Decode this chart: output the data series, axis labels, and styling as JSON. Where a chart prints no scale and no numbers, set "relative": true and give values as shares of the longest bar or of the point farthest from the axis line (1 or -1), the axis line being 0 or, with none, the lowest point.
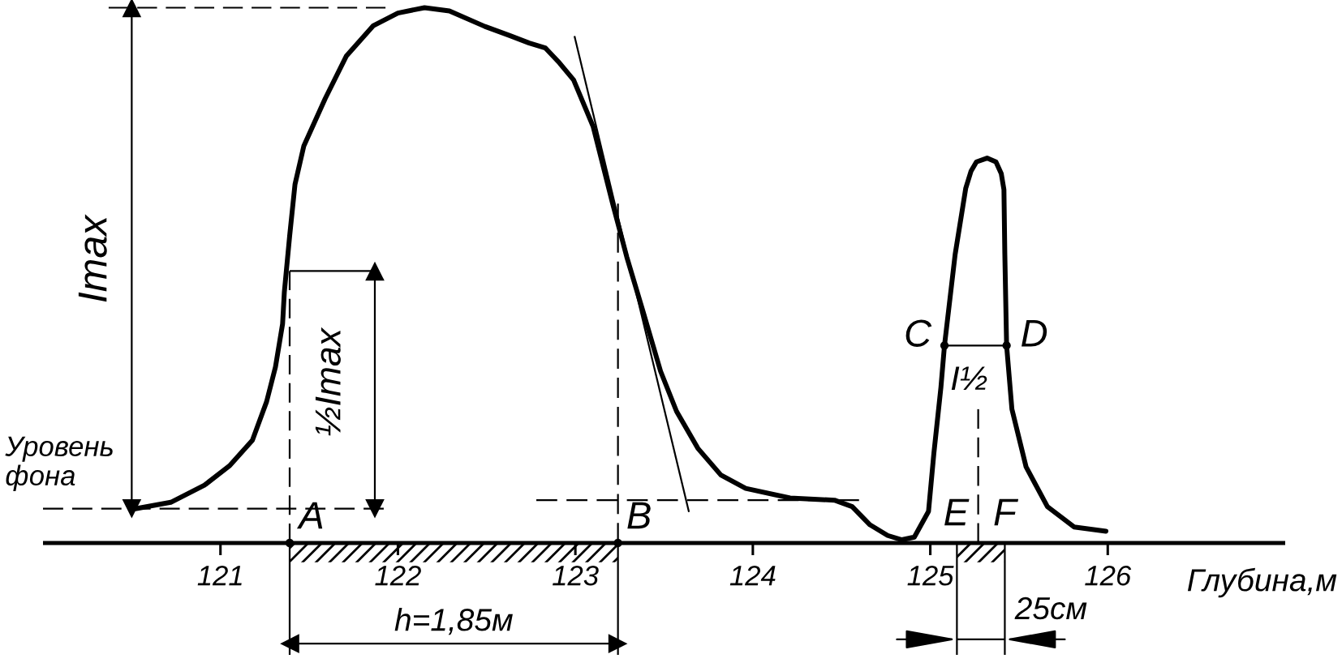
{
  "chart_data": {
    "type": "line",
    "relative": true,
    "xlabel": "Глубина,м",
    "xlim": [
      120,
      127
    ],
    "xticks": [
      121,
      122,
      123,
      124,
      125,
      126
    ],
    "tick_labels": "x",
    "series": [
      {
        "color": "#000000",
        "x": [
          120.52,
          120.72,
          120.91,
          121.05,
          121.18,
          121.26,
          121.31,
          121.35,
          121.36,
          121.39,
          121.42,
          121.47,
          121.59,
          121.71,
          121.86,
          122.0,
          122.15,
          122.29,
          122.49,
          122.63,
          122.74,
          122.83,
          122.91,
          122.99,
          123.1,
          123.21,
          123.29,
          123.38,
          123.48,
          123.57,
          123.69,
          123.82,
          123.96,
          124.21,
          124.46,
          124.56,
          124.66,
          124.76,
          124.84,
          124.91,
          124.99,
          125.02,
          125.06,
          125.08,
          125.14,
          125.2,
          125.23,
          125.26,
          125.32,
          125.37,
          125.4,
          125.415,
          125.42,
          125.43,
          125.46,
          125.54,
          125.66,
          125.81,
          125.99
        ],
        "values": [
          0.064,
          0.076,
          0.108,
          0.144,
          0.192,
          0.264,
          0.329,
          0.409,
          0.469,
          0.574,
          0.67,
          0.742,
          0.83,
          0.91,
          0.966,
          0.99,
          1.0,
          0.994,
          0.965,
          0.948,
          0.934,
          0.925,
          0.897,
          0.865,
          0.778,
          0.634,
          0.534,
          0.434,
          0.321,
          0.246,
          0.177,
          0.127,
          0.102,
          0.084,
          0.08,
          0.068,
          0.034,
          0.014,
          0.006,
          0.011,
          0.059,
          0.167,
          0.291,
          0.369,
          0.539,
          0.663,
          0.695,
          0.712,
          0.719,
          0.712,
          0.69,
          0.66,
          0.54,
          0.369,
          0.25,
          0.142,
          0.068,
          0.03,
          0.022
        ]
      },
      {
        "color": "#000000",
        "x": [
          122.995,
          123.64
        ],
        "values": [
          0.947,
          0.058
        ]
      },
      {
        "color": "#000000",
        "line_style": "dashed",
        "x": [
          120.37,
          121.93
        ],
        "values": [
          1.0,
          1.0
        ]
      },
      {
        "color": "#000000",
        "line_style": "dashed",
        "x": [
          120.0,
          121.92
        ],
        "values": [
          0.064,
          0.064
        ]
      },
      {
        "color": "#000000",
        "x": [
          121.39,
          121.87
        ],
        "values": [
          0.508,
          0.508
        ]
      },
      {
        "color": "#000000",
        "line_style": "dashed",
        "x": [
          121.39,
          121.39
        ],
        "values": [
          0,
          0.508
        ]
      },
      {
        "color": "#000000",
        "line_style": "dashed",
        "x": [
          123.24,
          123.24
        ],
        "values": [
          0,
          0.634
        ]
      },
      {
        "color": "#000000",
        "line_style": "dashed",
        "x": [
          122.78,
          124.6
        ],
        "values": [
          0.08,
          0.08
        ]
      },
      {
        "color": "#000000",
        "x": [
          125.08,
          125.43
        ],
        "values": [
          0.369,
          0.369
        ]
      },
      {
        "color": "#000000",
        "line_style": "dashed",
        "x": [
          125.27,
          125.27
        ],
        "values": [
          0,
          0.25
        ]
      },
      {
        "color": "#000000",
        "marker": "triangle",
        "x": [
          120.5,
          120.5
        ],
        "values": [
          0.064,
          1.0
        ]
      },
      {
        "color": "#000000",
        "marker": "triangle",
        "x": [
          121.87,
          121.87
        ],
        "values": [
          0.064,
          0.508
        ]
      },
      {
        "type": "scatter",
        "color": "#000000",
        "marker": "circle",
        "x": [
          121.39,
          123.24,
          125.08,
          125.43
        ],
        "values": [
          0,
          0,
          0.369,
          0.369
        ]
      },
      {
        "color": "#000000",
        "x": [
          121.39,
          121.39
        ],
        "values": [
          0,
          -0.209
        ]
      },
      {
        "color": "#000000",
        "x": [
          123.24,
          123.24
        ],
        "values": [
          0,
          -0.209
        ]
      },
      {
        "color": "#000000",
        "x": [
          125.15,
          125.15
        ],
        "values": [
          0,
          -0.209
        ]
      },
      {
        "color": "#000000",
        "x": [
          125.42,
          125.42
        ],
        "values": [
          0,
          -0.209
        ]
      },
      {
        "color": "#000000",
        "marker": "triangle",
        "x": [
          121.39,
          123.24
        ],
        "values": [
          -0.188,
          -0.188
        ]
      },
      {
        "type": "area",
        "color": "#000000",
        "x": [
          121.39,
          123.24
        ],
        "values": [
          -0.036,
          -0.036
        ]
      },
      {
        "type": "area",
        "color": "#000000",
        "x": [
          125.15,
          125.42
        ],
        "values": [
          -0.036,
          -0.036
        ]
      }
    ],
    "annotations": [
      {
        "text": "Imax",
        "x": 120.5,
        "y": 0.53
      },
      {
        "text": "½Imax",
        "x": 121.87,
        "y": 0.3
      },
      {
        "text": "Уровень\nфона",
        "x": 120.5,
        "y": 0.064
      },
      {
        "text": "A",
        "x": 121.39,
        "y": 0
      },
      {
        "text": "B",
        "x": 123.24,
        "y": 0
      },
      {
        "text": "C",
        "x": 125.08,
        "y": 0.369
      },
      {
        "text": "D",
        "x": 125.43,
        "y": 0.369
      },
      {
        "text": "I½",
        "x": 125.255,
        "y": 0.369
      },
      {
        "text": "E",
        "x": 125.15,
        "y": 0
      },
      {
        "text": "F",
        "x": 125.42,
        "y": 0
      },
      {
        "text": "h=1,85м",
        "x": 122.315,
        "y": -0.188
      },
      {
        "text": "25см",
        "x": 125.42,
        "y": -0.18
      }
    ]
  }
}
